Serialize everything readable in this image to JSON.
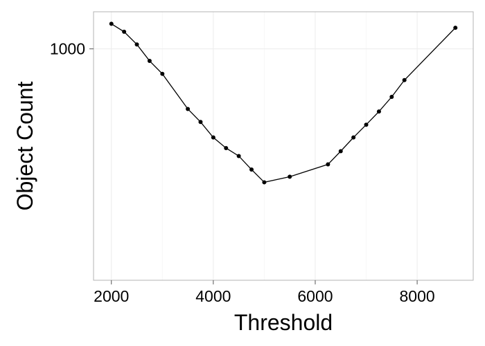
{
  "chart_data": {
    "type": "line",
    "title": "",
    "xlabel": "Threshold",
    "ylabel": "Object Count",
    "y_scale": "log",
    "xlim": [
      1650,
      9100
    ],
    "ylim": [
      275,
      1230
    ],
    "x_ticks": [
      2000,
      4000,
      6000,
      8000
    ],
    "x_tick_labels": [
      "2000",
      "4000",
      "6000",
      "8000"
    ],
    "y_ticks": [
      1000
    ],
    "y_tick_labels": [
      "1000"
    ],
    "grid": true,
    "legend": "none",
    "colors": {
      "line": "#000000",
      "point": "#000000",
      "panel_border": "#b3b3b3",
      "grid_major": "#ececec",
      "grid_minor": "#f7f7f7"
    },
    "series": [
      {
        "x": [
          2000,
          2250,
          2500,
          2750,
          3000,
          3500,
          3750,
          4000,
          4250,
          4500,
          4750,
          5000,
          5500,
          6250,
          6500,
          6750,
          7000,
          7250,
          7500,
          7750,
          8750
        ],
        "y": [
          1150,
          1100,
          1025,
          935,
          870,
          715,
          665,
          610,
          575,
          550,
          510,
          475,
          490,
          525,
          565,
          610,
          655,
          705,
          765,
          840,
          1125
        ]
      }
    ]
  }
}
